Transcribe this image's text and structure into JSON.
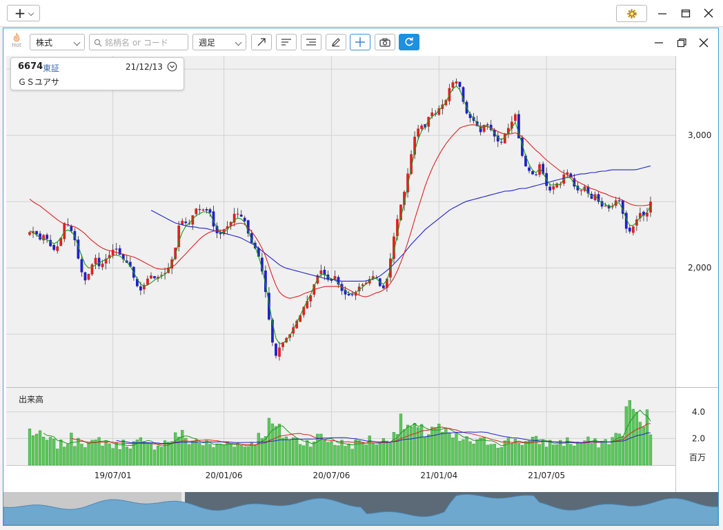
{
  "titlebar": {
    "add_label": "+",
    "settings_icon": "gear-icon",
    "minimize_icon": "minimize-icon",
    "maximize_icon": "maximize-icon",
    "close_icon": "close-icon"
  },
  "toolbar": {
    "hot_label": "Hot",
    "market_select": "株式",
    "search_placeholder": "銘柄名 or コード",
    "period_select": "週足",
    "tools": [
      "trendline-icon",
      "align-left-icon",
      "align-right-icon",
      "pencil-icon",
      "crosshair-icon",
      "camera-icon",
      "refresh-icon"
    ],
    "window_controls": [
      "minimize-icon",
      "restore-icon",
      "close-icon"
    ]
  },
  "stock": {
    "code": "6674",
    "exchange": "東証",
    "date": "21/12/13",
    "name": "ＧＳユアサ"
  },
  "accent_color": "#1e90e0",
  "chart_data": {
    "type": "candlestick",
    "price_axis": {
      "ticks": [
        "3,000",
        "2,000"
      ],
      "tick_values": [
        3000,
        2000
      ],
      "ylim": [
        1100,
        3600
      ]
    },
    "volume_axis": {
      "label": "出来高",
      "ticks": [
        "4.0",
        "2.0"
      ],
      "tick_values": [
        4.0,
        2.0
      ],
      "unit": "百万",
      "ylim": [
        0,
        5.8
      ]
    },
    "x_ticks": [
      "19/07/01",
      "20/01/06",
      "20/07/06",
      "21/01/04",
      "21/07/05"
    ],
    "x_tick_index": [
      24,
      56,
      87,
      118,
      149
    ],
    "n_bars": 180,
    "colors": {
      "up": "#e02020",
      "down": "#2020c8",
      "ma_short": "#1a9a1a",
      "ma_mid": "#e02020",
      "ma_long": "#2020d0",
      "volume": "#5cc75c"
    },
    "close": [
      2270,
      2280,
      2210,
      2260,
      2170,
      2130,
      2190,
      2350,
      2310,
      2210,
      2010,
      1900,
      1970,
      2090,
      2000,
      2060,
      2100,
      2160,
      2100,
      2050,
      2020,
      1900,
      1820,
      1880,
      1950,
      1920,
      1940,
      1960,
      2020,
      2130,
      2370,
      2340,
      2330,
      2450,
      2440,
      2440,
      2420,
      2270,
      2250,
      2300,
      2330,
      2420,
      2400,
      2350,
      2210,
      2150,
      2060,
      1850,
      1550,
      1320,
      1410,
      1460,
      1500,
      1580,
      1640,
      1730,
      1780,
      1900,
      1990,
      1940,
      1890,
      1940,
      1840,
      1800,
      1790,
      1810,
      1870,
      1880,
      1920,
      1950,
      1860,
      1840,
      2060,
      2300,
      2460,
      2600,
      2820,
      3010,
      3080,
      3060,
      3180,
      3160,
      3220,
      3250,
      3380,
      3420,
      3360,
      3180,
      3130,
      3100,
      3020,
      3100,
      3050,
      2980,
      2930,
      3020,
      3080,
      3160,
      2890,
      2770,
      2720,
      2690,
      2800,
      2630,
      2580,
      2640,
      2630,
      2740,
      2690,
      2590,
      2580,
      2620,
      2510,
      2560,
      2460,
      2470,
      2440,
      2510,
      2500,
      2300,
      2270,
      2350,
      2420,
      2380,
      2500
    ],
    "ma_short": [
      2280,
      2260,
      2230,
      2220,
      2200,
      2180,
      2210,
      2280,
      2290,
      2240,
      2130,
      2030,
      1990,
      2020,
      2040,
      2060,
      2080,
      2100,
      2090,
      2060,
      2020,
      1950,
      1880,
      1860,
      1880,
      1910,
      1930,
      1950,
      1990,
      2080,
      2230,
      2310,
      2340,
      2390,
      2410,
      2430,
      2410,
      2330,
      2270,
      2270,
      2310,
      2370,
      2380,
      2340,
      2240,
      2160,
      2060,
      1900,
      1690,
      1480,
      1420,
      1440,
      1490,
      1560,
      1640,
      1720,
      1790,
      1880,
      1950,
      1950,
      1920,
      1910,
      1870,
      1830,
      1800,
      1810,
      1840,
      1870,
      1910,
      1930,
      1890,
      1870,
      1980,
      2170,
      2360,
      2520,
      2720,
      2900,
      3020,
      3070,
      3130,
      3160,
      3200,
      3240,
      3320,
      3380,
      3340,
      3230,
      3160,
      3110,
      3050,
      3080,
      3060,
      3010,
      2960,
      2990,
      3040,
      3100,
      2980,
      2850,
      2760,
      2710,
      2760,
      2680,
      2620,
      2630,
      2630,
      2690,
      2680,
      2620,
      2590,
      2600,
      2540,
      2550,
      2490,
      2480,
      2450,
      2490,
      2490,
      2380,
      2310,
      2330,
      2390,
      2400,
      2470
    ],
    "ma_mid": [
      2520,
      2490,
      2470,
      2440,
      2410,
      2380,
      2350,
      2330,
      2320,
      2310,
      2290,
      2260,
      2220,
      2190,
      2160,
      2140,
      2130,
      2120,
      2110,
      2100,
      2090,
      2080,
      2060,
      2040,
      2020,
      2000,
      1990,
      1990,
      2000,
      2020,
      2060,
      2100,
      2140,
      2180,
      2220,
      2250,
      2270,
      2280,
      2280,
      2290,
      2310,
      2330,
      2340,
      2330,
      2290,
      2240,
      2180,
      2100,
      1990,
      1880,
      1810,
      1780,
      1770,
      1780,
      1790,
      1810,
      1820,
      1840,
      1850,
      1860,
      1860,
      1860,
      1860,
      1850,
      1830,
      1810,
      1790,
      1780,
      1790,
      1810,
      1820,
      1840,
      1880,
      1940,
      2030,
      2130,
      2250,
      2380,
      2500,
      2620,
      2720,
      2800,
      2870,
      2930,
      2980,
      3020,
      3060,
      3070,
      3080,
      3080,
      3070,
      3070,
      3060,
      3040,
      3020,
      3010,
      3010,
      3020,
      3000,
      2970,
      2930,
      2890,
      2860,
      2820,
      2790,
      2760,
      2730,
      2710,
      2690,
      2660,
      2640,
      2620,
      2600,
      2590,
      2570,
      2560,
      2540,
      2530,
      2520,
      2500,
      2480,
      2470,
      2470,
      2470,
      2480
    ],
    "ma_long": [
      null,
      null,
      null,
      null,
      null,
      null,
      null,
      null,
      null,
      null,
      null,
      null,
      null,
      null,
      null,
      null,
      null,
      null,
      null,
      null,
      null,
      null,
      null,
      null,
      2440,
      2420,
      2400,
      2380,
      2360,
      2340,
      2330,
      2320,
      2310,
      2310,
      2300,
      2300,
      2290,
      2280,
      2270,
      2260,
      2250,
      2240,
      2230,
      2210,
      2190,
      2170,
      2140,
      2110,
      2080,
      2050,
      2020,
      2000,
      1990,
      1980,
      1970,
      1960,
      1950,
      1940,
      1930,
      1920,
      1910,
      1910,
      1900,
      1900,
      1900,
      1900,
      1900,
      1900,
      1910,
      1920,
      1940,
      1970,
      2000,
      2040,
      2080,
      2120,
      2170,
      2210,
      2250,
      2290,
      2320,
      2350,
      2380,
      2410,
      2440,
      2460,
      2480,
      2500,
      2510,
      2520,
      2530,
      2540,
      2550,
      2560,
      2570,
      2580,
      2580,
      2590,
      2600,
      2600,
      2610,
      2620,
      2630,
      2640,
      2650,
      2660,
      2670,
      2680,
      2690,
      2700,
      2710,
      2710,
      2720,
      2720,
      2730,
      2730,
      2740,
      2740,
      2740,
      2740,
      2740,
      2740,
      2750,
      2760,
      2770
    ],
    "volume_samples": [
      2.6,
      2.4,
      2.1,
      1.9,
      1.8,
      1.6,
      1.5,
      1.6,
      2.0,
      1.8,
      2.3,
      1.7,
      1.5,
      1.6,
      1.9,
      1.8,
      1.6,
      1.4,
      1.5,
      1.7,
      1.6,
      1.6,
      1.8,
      1.5,
      1.4,
      1.5,
      1.6,
      1.7,
      1.9,
      2.1,
      2.4,
      2.0,
      1.8,
      1.9,
      1.7,
      1.6,
      1.5,
      1.4,
      1.5,
      1.6,
      1.8,
      1.7,
      1.5,
      1.4,
      1.6,
      1.9,
      2.2,
      2.6,
      3.1,
      2.8,
      2.5,
      2.2,
      2.0,
      1.9,
      1.8,
      1.7,
      1.8,
      2.0,
      2.1,
      1.9,
      1.8,
      1.7,
      1.6,
      1.6,
      1.5,
      1.6,
      1.7,
      1.8,
      1.9,
      1.8,
      1.7,
      1.8,
      2.2,
      2.7,
      3.1,
      3.0,
      2.8,
      2.6,
      2.5,
      2.4,
      2.8,
      3.0,
      2.6,
      2.3,
      2.1,
      2.0,
      1.9,
      1.8,
      1.8,
      1.7,
      1.7,
      1.8,
      1.8,
      1.7,
      1.6,
      1.7,
      1.8,
      1.9,
      1.8,
      1.7,
      1.7,
      1.8,
      1.8,
      1.7,
      1.6,
      1.7,
      1.7,
      1.8,
      1.7,
      1.6,
      1.7,
      1.8,
      1.7,
      1.6,
      1.7,
      1.8,
      1.9,
      2.1,
      2.3,
      3.4,
      5.2,
      3.6,
      2.8,
      3.9,
      2.5
    ]
  }
}
